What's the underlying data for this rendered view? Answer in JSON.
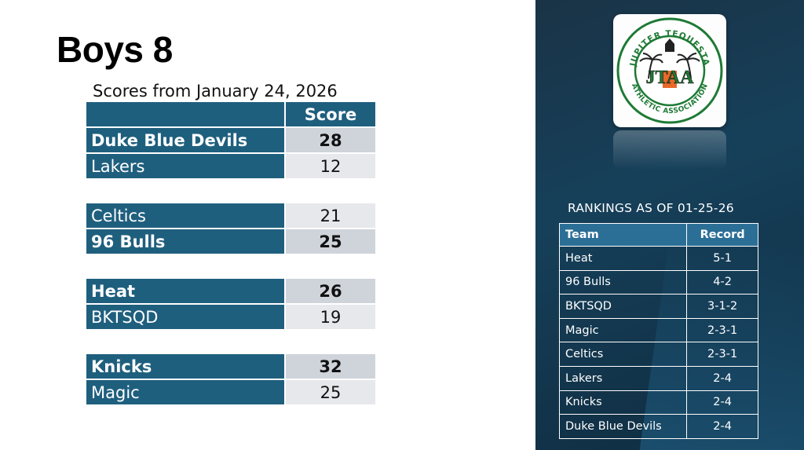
{
  "page": {
    "title": "Boys 8",
    "subtitle": "Scores from January 24, 2026"
  },
  "scores": {
    "header_score": "Score",
    "games": [
      {
        "rows": [
          {
            "team": "Duke Blue Devils",
            "score": "28",
            "winner": true
          },
          {
            "team": "Lakers",
            "score": "12",
            "winner": false
          }
        ]
      },
      {
        "rows": [
          {
            "team": "Celtics",
            "score": "21",
            "winner": false
          },
          {
            "team": "96 Bulls",
            "score": "25",
            "winner": true
          }
        ]
      },
      {
        "rows": [
          {
            "team": "Heat",
            "score": "26",
            "winner": true
          },
          {
            "team": "BKTSQD",
            "score": "19",
            "winner": false
          }
        ]
      },
      {
        "rows": [
          {
            "team": "Knicks",
            "score": "32",
            "winner": true
          },
          {
            "team": "Magic",
            "score": "25",
            "winner": false
          }
        ]
      }
    ]
  },
  "logo": {
    "text_top": "JUPITER TEQUESTA",
    "text_bottom": "ATHLETIC ASSOCIATION",
    "initials": "JTAA"
  },
  "rankings": {
    "title": "RANKINGS AS OF 01-25-26",
    "col_team": "Team",
    "col_record": "Record",
    "rows": [
      {
        "team": "Heat",
        "record": "5-1"
      },
      {
        "team": "96 Bulls",
        "record": "4-2"
      },
      {
        "team": "BKTSQD",
        "record": "3-1-2"
      },
      {
        "team": "Magic",
        "record": "2-3-1"
      },
      {
        "team": "Celtics",
        "record": "2-3-1"
      },
      {
        "team": "Lakers",
        "record": "2-4"
      },
      {
        "team": "Knicks",
        "record": "2-4"
      },
      {
        "team": "Duke Blue Devils",
        "record": "2-4"
      }
    ]
  },
  "colors": {
    "team_cell": "#1f5f7e",
    "winner_score_bg": "#cfd3da",
    "loser_score_bg": "#e6e8ec",
    "panel_bg": "#16405a",
    "rank_header": "#2c6f96",
    "logo_green": "#2e8b3a",
    "logo_orange": "#e8692a"
  }
}
